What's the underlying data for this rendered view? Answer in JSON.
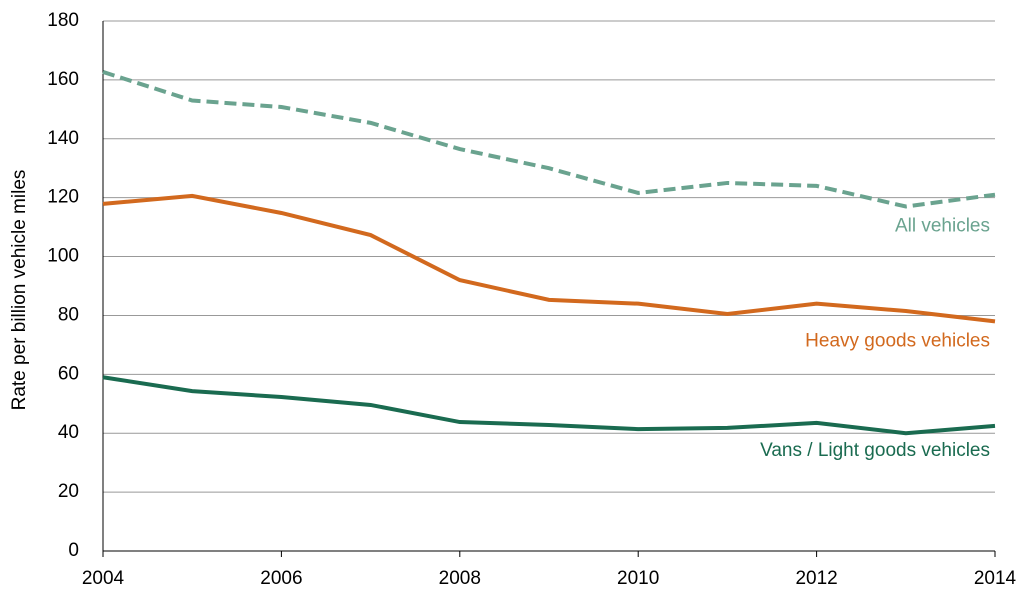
{
  "chart_data": {
    "type": "line",
    "y_label": "Rate per billion vehicle miles",
    "x": [
      2004,
      2005,
      2006,
      2007,
      2008,
      2009,
      2010,
      2011,
      2012,
      2013,
      2014
    ],
    "series": [
      {
        "name": "All vehicles",
        "color": "#6aa38f",
        "dashed": true,
        "values": [
          162.7,
          153,
          150.8,
          145.4,
          136.5,
          130,
          121.6,
          125,
          124,
          117,
          121
        ]
      },
      {
        "name": "Heavy goods vehicles",
        "color": "#d2691e",
        "dashed": false,
        "values": [
          117.9,
          120.6,
          114.8,
          107.3,
          92,
          85.3,
          84,
          80.5,
          84,
          81.5,
          78
        ]
      },
      {
        "name": "Vans / Light goods vehicles",
        "color": "#1a6b50",
        "dashed": false,
        "values": [
          59,
          54.3,
          52.3,
          49.6,
          43.8,
          42.8,
          41.4,
          41.8,
          43.5,
          40,
          42.5
        ]
      }
    ],
    "xlim": [
      2004,
      2014
    ],
    "xticks": [
      2004,
      2006,
      2008,
      2010,
      2012,
      2014
    ],
    "ylim": [
      0,
      180
    ],
    "yticks": [
      0,
      20,
      40,
      60,
      80,
      100,
      120,
      140,
      160,
      180
    ],
    "grid": true
  }
}
